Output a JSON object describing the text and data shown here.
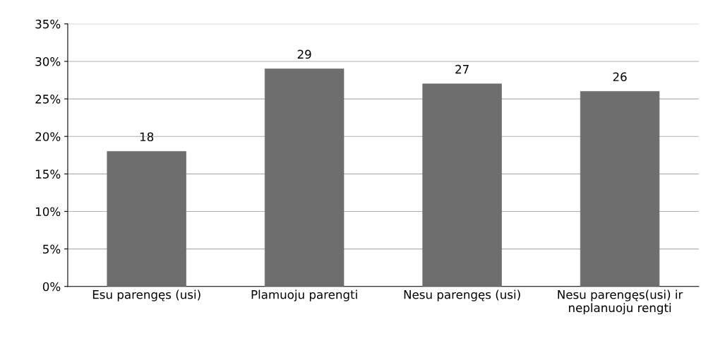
{
  "chart_data": {
    "type": "bar",
    "categories": [
      "Esu parengęs (usi)",
      "Plamuoju parengti",
      "Nesu parengęs (usi)",
      "Nesu parengęs(usi) ir\nneplanuoju rengti"
    ],
    "values": [
      18,
      29,
      27,
      26
    ],
    "color": "#6e6e6e",
    "ylim": [
      0,
      35
    ],
    "yticks": [
      {
        "value": 0,
        "label": "0%"
      },
      {
        "value": 5,
        "label": "5%"
      },
      {
        "value": 10,
        "label": "10%"
      },
      {
        "value": 15,
        "label": "15%"
      },
      {
        "value": 20,
        "label": "20%"
      },
      {
        "value": 25,
        "label": "25%"
      },
      {
        "value": 30,
        "label": "30%"
      },
      {
        "value": 35,
        "label": "35%"
      }
    ],
    "grid": "y",
    "data_labels": true
  }
}
